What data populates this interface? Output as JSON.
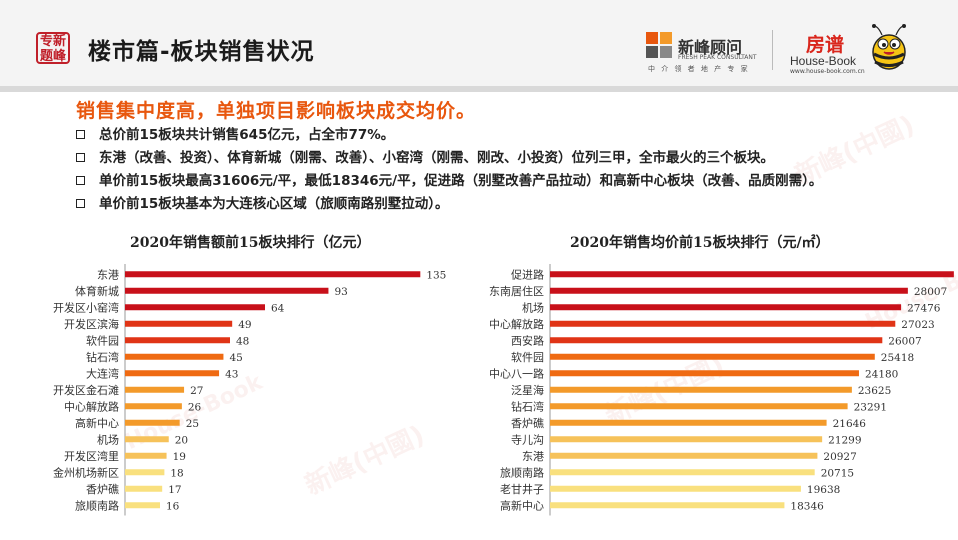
{
  "header": {
    "seal_text": "专新\n题峰",
    "title": "楼市篇-板块销售状况",
    "logo_xinfeng": {
      "name": "新峰顾问",
      "english": "FRESH PEAK CONSULTANT",
      "slogan": "中 介 领 者   地 产 专 家"
    },
    "logo_housebook": {
      "cn": "房谱",
      "en": "House-Book",
      "url": "www.house-book.com.cn"
    }
  },
  "headline": "销售集中度高，单独项目影响板块成交均价。",
  "bullets": [
    "总价前15板块共计销售645亿元，占全市77%。",
    "东港（改善、投资）、体育新城（刚需、改善）、小窑湾（刚需、刚改、小投资）位列三甲，全市最火的三个板块。",
    "单价前15板块最高31606元/平，最低18346元/平，促进路（别墅改善产品拉动）和高新中心板块（改善、品质刚需）。",
    "单价前15板块基本为大连核心区域（旅顺南路别墅拉动）。"
  ],
  "colors": {
    "headline": "#e8570e",
    "bar_gradient": [
      "#c8101a",
      "#e03416",
      "#ef6a12",
      "#f39a2a",
      "#f6c25a",
      "#f9e07e"
    ]
  },
  "chart_data": [
    {
      "type": "bar",
      "orientation": "horizontal",
      "title": "2020年销售额前15板块排行（亿元）",
      "categories": [
        "东港",
        "体育新城",
        "开发区小窑湾",
        "开发区滨海",
        "软件园",
        "钻石湾",
        "大连湾",
        "开发区金石滩",
        "中心解放路",
        "高新中心",
        "机场",
        "开发区湾里",
        "金州机场新区",
        "香炉礁",
        "旅顺南路"
      ],
      "values": [
        135,
        93,
        64,
        49,
        48,
        45,
        43,
        27,
        26,
        25,
        20,
        19,
        18,
        17,
        16
      ],
      "xlim": [
        0,
        160
      ],
      "grid": false,
      "legend": "none"
    },
    {
      "type": "bar",
      "orientation": "horizontal",
      "title": "2020年销售均价前15板块排行（元/㎡）",
      "categories": [
        "促进路",
        "东南居住区",
        "机场",
        "中心解放路",
        "西安路",
        "软件园",
        "中心八一路",
        "泛星海",
        "钻石湾",
        "香炉礁",
        "寺儿沟",
        "东港",
        "旅顺南路",
        "老甘井子",
        "高新中心"
      ],
      "values": [
        31606,
        28007,
        27476,
        27023,
        26007,
        25418,
        24180,
        23625,
        23291,
        21646,
        21299,
        20927,
        20715,
        19638,
        18346
      ],
      "xlim": [
        0,
        36000
      ],
      "grid": false,
      "legend": "none"
    }
  ],
  "watermark": {
    "cn": "新峰(中國)",
    "en": "FRESH PEAK (CHINA)",
    "hb_cn": "房谱",
    "hb_en": "House-Book"
  }
}
